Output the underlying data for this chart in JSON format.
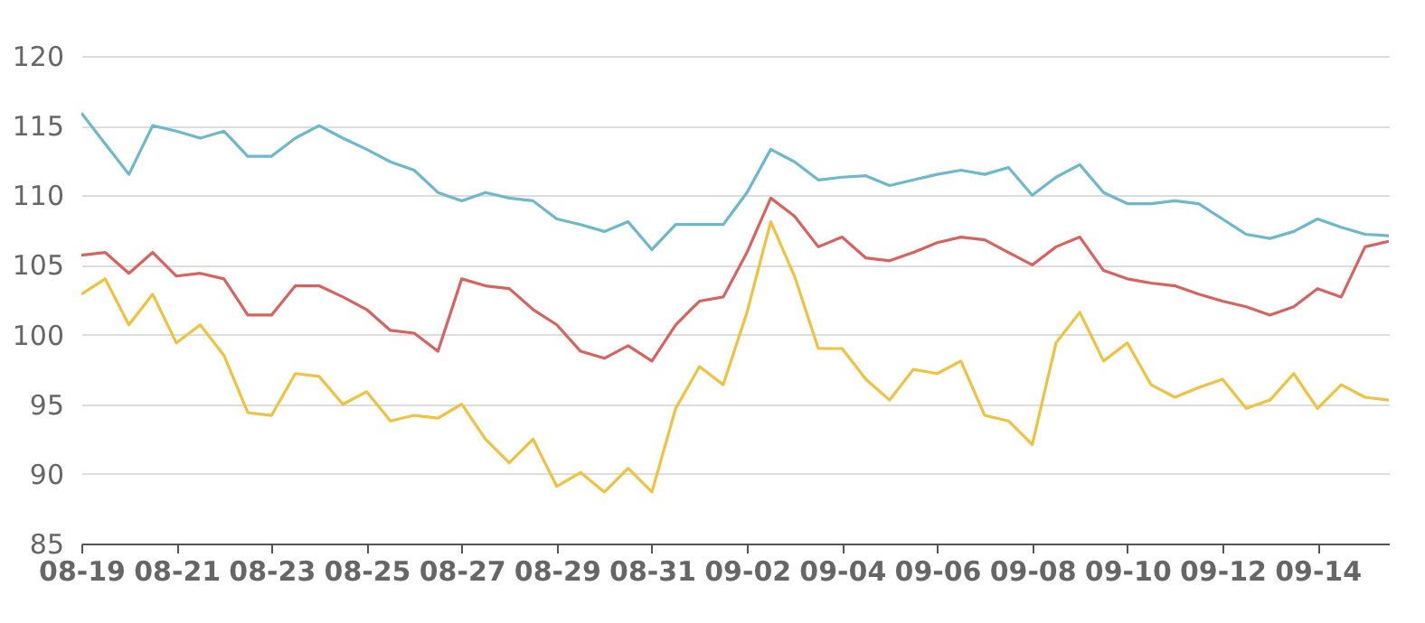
{
  "chart_data": {
    "type": "line",
    "x": [
      "--08-19",
      "--08-19T12:00",
      "--08-20",
      "--08-20T12:00",
      "--08-21",
      "--08-21T12:00",
      "--08-22",
      "--08-22T12:00",
      "--08-23",
      "--08-23T12:00",
      "--08-24",
      "--08-24T12:00",
      "--08-25",
      "--08-25T12:00",
      "--08-26",
      "--08-26T12:00",
      "--08-27",
      "--08-27T12:00",
      "--08-28",
      "--08-28T12:00",
      "--08-29",
      "--08-29T12:00",
      "--08-30",
      "--08-30T12:00",
      "--08-31",
      "--08-31T12:00",
      "--09-01",
      "--09-01T12:00",
      "--09-02",
      "--09-02T12:00",
      "--09-03",
      "--09-03T12:00",
      "--09-04",
      "--09-04T12:00",
      "--09-05",
      "--09-05T12:00",
      "--09-06",
      "--09-06T12:00",
      "--09-07",
      "--09-07T12:00",
      "--09-08",
      "--09-08T12:00",
      "--09-09",
      "--09-09T12:00",
      "--09-10",
      "--09-10T12:00",
      "--09-11",
      "--09-11T12:00",
      "--09-12",
      "--09-12T12:00",
      "--09-13",
      "--09-13T12:00",
      "--09-14",
      "--09-14T12:00",
      "--09-15",
      "--09-15T12:00"
    ],
    "series": [
      {
        "color": "#6cb8cc",
        "values": [
          115.9,
          113.7,
          111.5,
          115,
          114.6,
          114.1,
          114.6,
          112.8,
          112.8,
          114.1,
          115,
          114.1,
          113.3,
          112.4,
          111.8,
          110.2,
          109.6,
          110.2,
          109.8,
          109.6,
          108.3,
          107.9,
          107.4,
          108.1,
          106.1,
          107.9,
          107.9,
          107.9,
          110.2,
          113.3,
          112.4,
          111.1,
          111.3,
          111.4,
          110.7,
          111.1,
          111.5,
          111.8,
          111.5,
          112,
          110,
          111.3,
          112.2,
          110.2,
          109.4,
          109.4,
          109.6,
          109.4,
          108.3,
          107.2,
          106.9,
          107.4,
          108.3,
          107.7,
          107.2,
          107.1
        ]
      },
      {
        "color": "#d9625f",
        "values": [
          105.7,
          105.9,
          104.4,
          105.9,
          104.2,
          104.4,
          104,
          101.4,
          101.4,
          103.5,
          103.5,
          102.7,
          101.8,
          100.3,
          100.1,
          98.8,
          104,
          103.5,
          103.3,
          101.8,
          100.7,
          98.8,
          98.3,
          99.2,
          98.1,
          100.7,
          102.4,
          102.7,
          105.9,
          109.8,
          108.5,
          106.3,
          107,
          105.5,
          105.3,
          105.9,
          106.6,
          107,
          106.8,
          105.9,
          105,
          106.3,
          107,
          104.6,
          104,
          103.7,
          103.5,
          102.9,
          102.4,
          102,
          101.4,
          102,
          103.3,
          102.7,
          106.3,
          106.7
        ]
      },
      {
        "color": "#f0c23f",
        "values": [
          102.9,
          104,
          100.7,
          102.9,
          99.4,
          100.7,
          98.5,
          94.4,
          94.2,
          97.2,
          97,
          95,
          95.9,
          93.8,
          94.2,
          94,
          95,
          92.5,
          90.8,
          92.5,
          89.1,
          90.1,
          88.7,
          90.4,
          88.7,
          94.7,
          97.7,
          96.4,
          101.6,
          108.1,
          104.2,
          99,
          99,
          96.8,
          95.3,
          97.5,
          97.2,
          98.1,
          94.2,
          93.8,
          92.1,
          99.4,
          101.6,
          98.1,
          99.4,
          96.4,
          95.5,
          96.2,
          96.8,
          94.7,
          95.3,
          97.2,
          94.7,
          96.4,
          95.5,
          95.3
        ]
      }
    ],
    "xlim": [
      "--08-19",
      "--09-15T12:00"
    ],
    "xticks": [
      {
        "value": "--08-19",
        "label": "08-19"
      },
      {
        "value": "--08-21",
        "label": "08-21"
      },
      {
        "value": "--08-23",
        "label": "08-23"
      },
      {
        "value": "--08-25",
        "label": "08-25"
      },
      {
        "value": "--08-27",
        "label": "08-27"
      },
      {
        "value": "--08-29",
        "label": "08-29"
      },
      {
        "value": "--08-31",
        "label": "08-31"
      },
      {
        "value": "--09-02",
        "label": "09-02"
      },
      {
        "value": "--09-04",
        "label": "09-04"
      },
      {
        "value": "--09-06",
        "label": "09-06"
      },
      {
        "value": "--09-08",
        "label": "09-08"
      },
      {
        "value": "--09-10",
        "label": "09-10"
      },
      {
        "value": "--09-12",
        "label": "09-12"
      },
      {
        "value": "--09-14",
        "label": "09-14"
      }
    ],
    "ylim": [
      85,
      120
    ],
    "yticks": [
      85,
      90,
      95,
      100,
      105,
      110,
      115,
      120
    ],
    "grid": "y"
  }
}
